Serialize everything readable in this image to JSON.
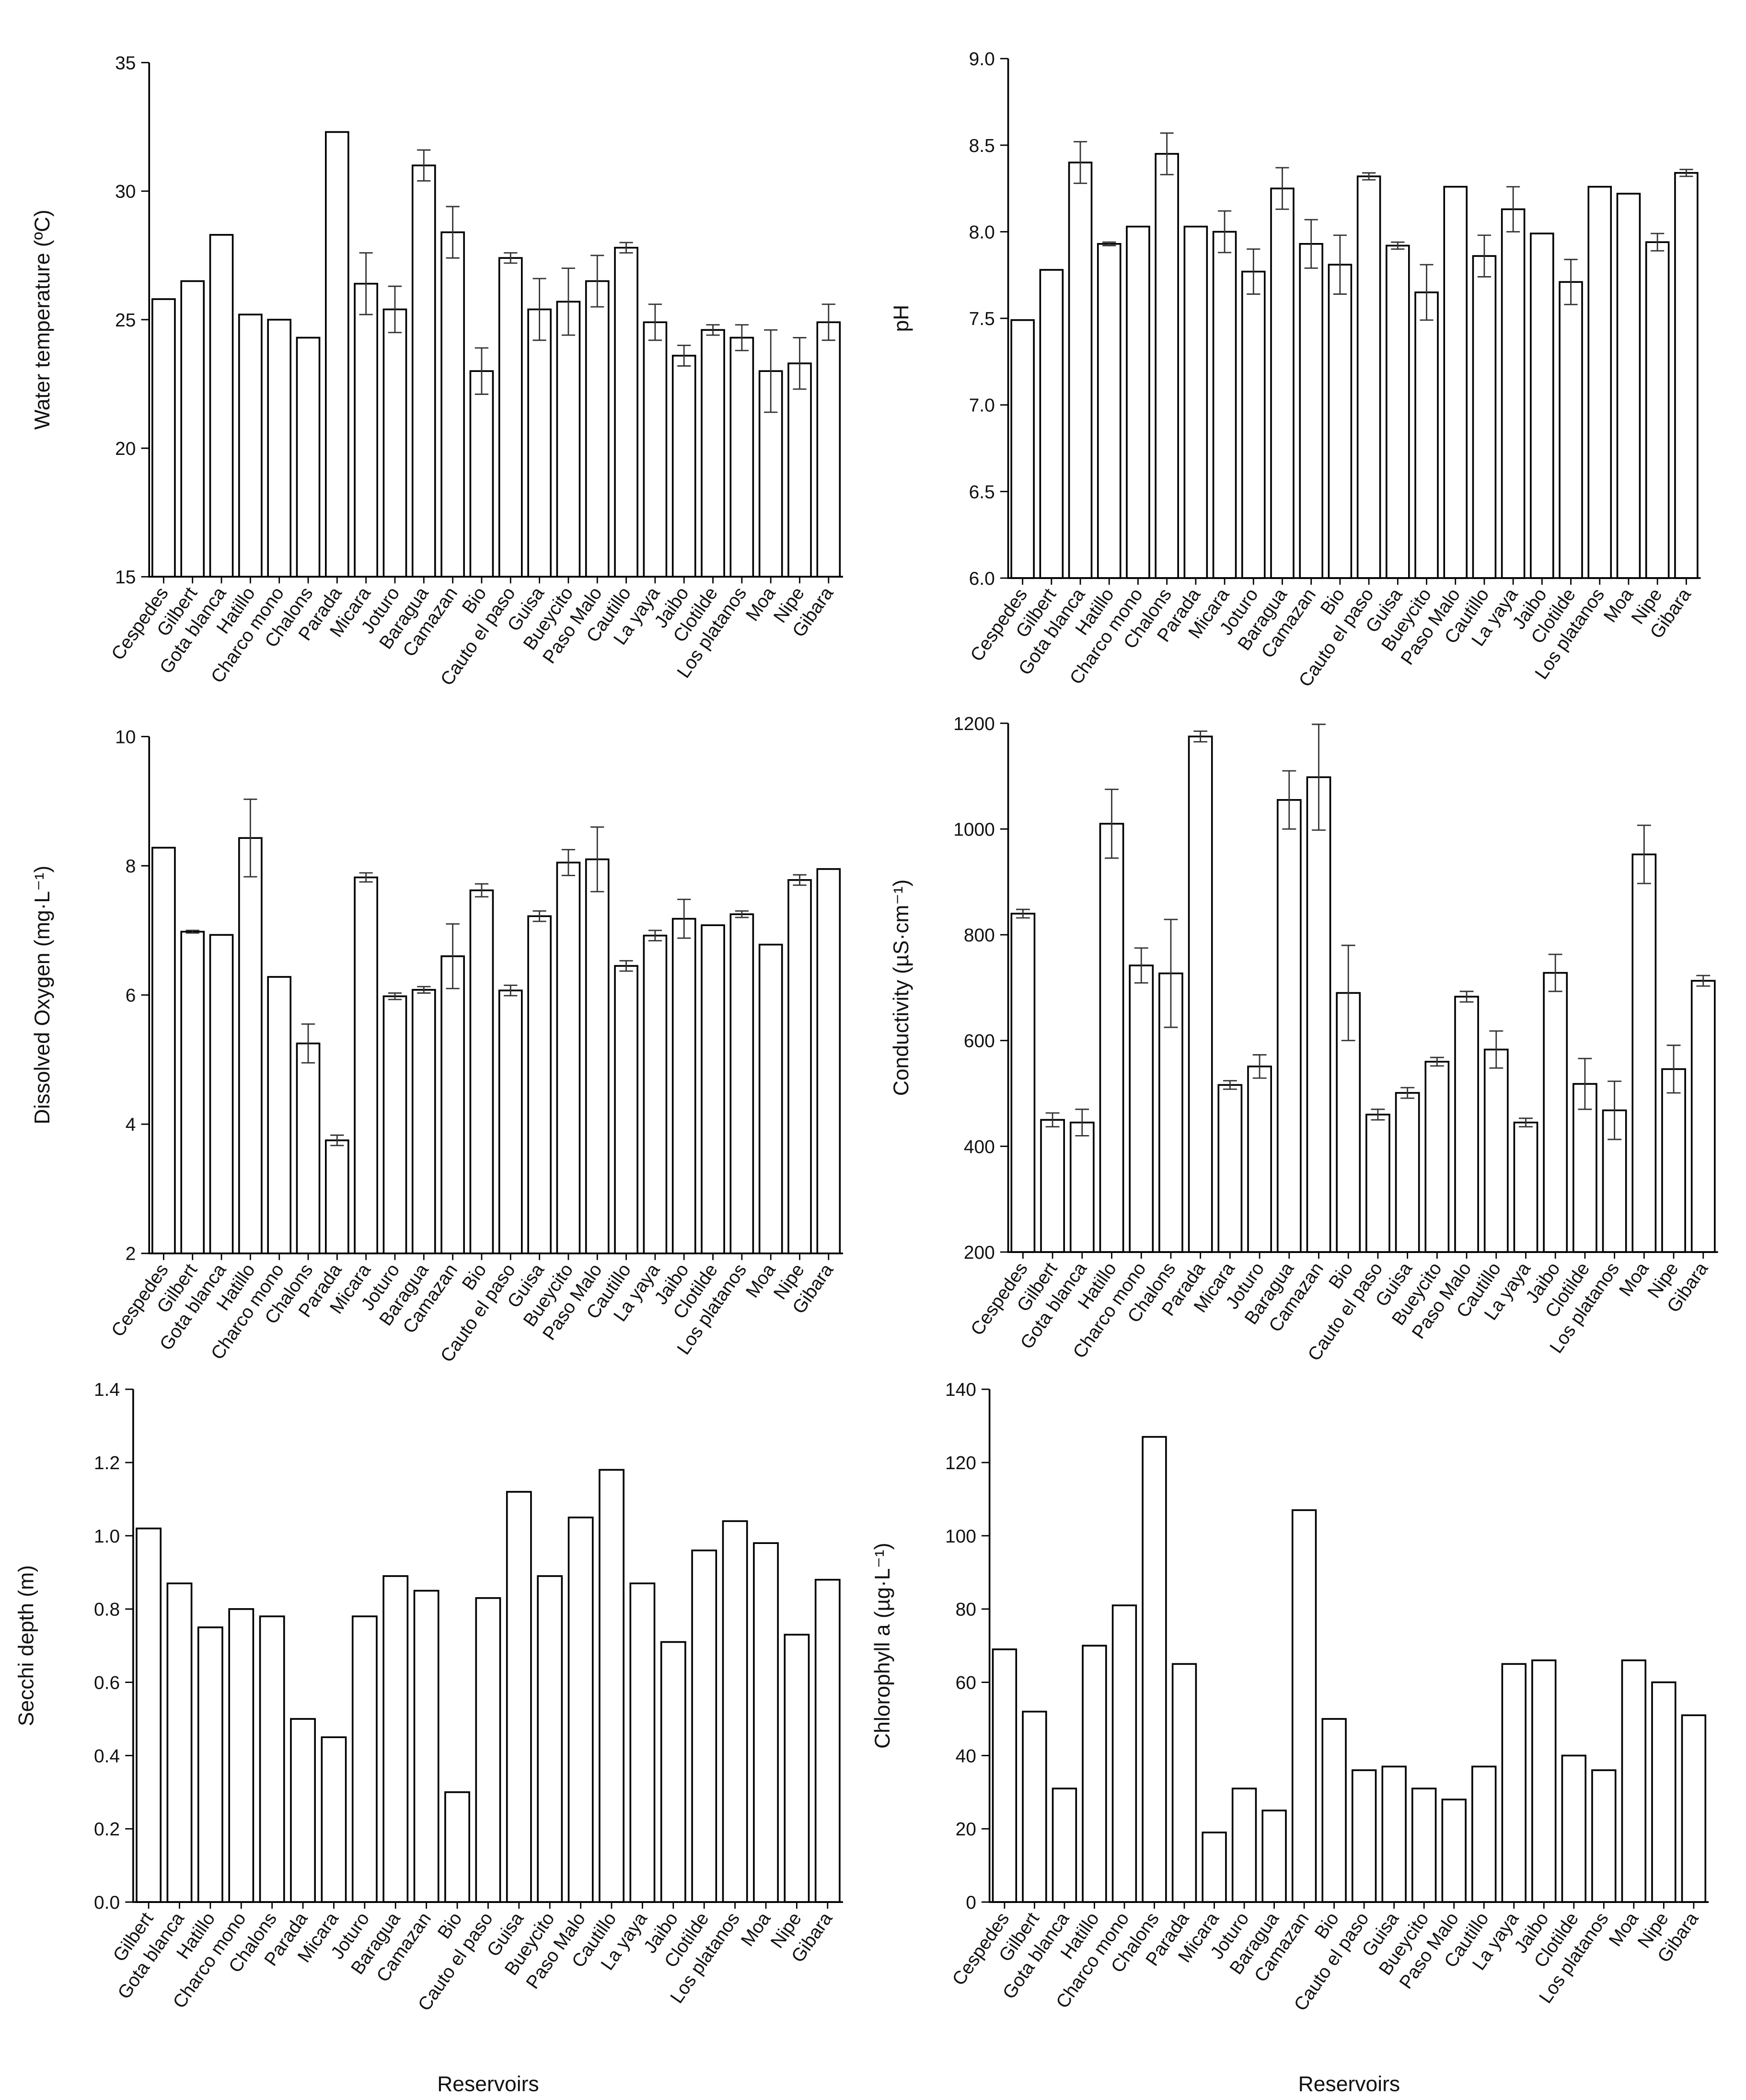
{
  "chart_data": [
    {
      "type": "bar",
      "y_label": "Water temperature (ºC)",
      "categories": [
        "Cespedes",
        "Gilbert",
        "Gota blanca",
        "Hatillo",
        "Charco mono",
        "Chalons",
        "Parada",
        "Micara",
        "Joturo",
        "Baragua",
        "Camazan",
        "Bio",
        "Cauto el paso",
        "Guisa",
        "Bueycito",
        "Paso Malo",
        "Cautillo",
        "La yaya",
        "Jaibo",
        "Clotilde",
        "Los platanos",
        "Moa",
        "Nipe",
        "Gibara"
      ],
      "values": [
        25.8,
        26.5,
        28.3,
        25.2,
        25.0,
        24.3,
        32.3,
        26.4,
        25.4,
        31.0,
        28.4,
        23.0,
        27.4,
        25.4,
        25.7,
        26.5,
        27.8,
        24.9,
        23.6,
        24.6,
        24.3,
        23.0,
        23.3,
        24.9
      ],
      "errors": [
        null,
        null,
        null,
        null,
        null,
        null,
        null,
        1.2,
        0.9,
        0.6,
        1.0,
        0.9,
        0.2,
        1.2,
        1.3,
        1.0,
        0.2,
        0.7,
        0.4,
        0.2,
        0.5,
        1.6,
        1.0,
        0.7
      ],
      "color": "#ffffff",
      "ylim": [
        15,
        35
      ],
      "yticks": [
        15,
        20,
        25,
        30,
        35
      ]
    },
    {
      "type": "bar",
      "y_label": "pH",
      "categories": [
        "Cespedes",
        "Gilbert",
        "Gota blanca",
        "Hatillo",
        "Charco mono",
        "Chalons",
        "Parada",
        "Micara",
        "Joturo",
        "Baragua",
        "Camazan",
        "Bio",
        "Cauto el paso",
        "Guisa",
        "Bueycito",
        "Paso Malo",
        "Cautillo",
        "La yaya",
        "Jaibo",
        "Clotilde",
        "Los platanos",
        "Moa",
        "Nipe",
        "Gibara"
      ],
      "values": [
        7.49,
        7.78,
        8.4,
        7.93,
        8.03,
        8.45,
        8.03,
        8.0,
        7.77,
        8.25,
        7.93,
        7.81,
        8.32,
        7.92,
        7.65,
        8.26,
        7.86,
        8.13,
        7.99,
        7.71,
        8.26,
        8.22,
        7.94,
        8.34
      ],
      "errors": [
        null,
        null,
        0.12,
        0.01,
        null,
        0.12,
        null,
        0.12,
        0.13,
        0.12,
        0.14,
        0.17,
        0.02,
        0.02,
        0.16,
        null,
        0.12,
        0.13,
        null,
        0.13,
        null,
        null,
        0.05,
        0.02
      ],
      "color": "#ffffff",
      "ylim": [
        6,
        9
      ],
      "yticks": [
        {
          "value": 6,
          "label": "6.0"
        },
        6.5,
        {
          "value": 7,
          "label": "7.0"
        },
        7.5,
        {
          "value": 8,
          "label": "8.0"
        },
        8.5,
        {
          "value": 9,
          "label": "9.0"
        }
      ]
    },
    {
      "type": "bar",
      "y_label": "Dissolved Oxygen (mg·L⁻¹)",
      "categories": [
        "Cespedes",
        "Gilbert",
        "Gota blanca",
        "Hatillo",
        "Charco mono",
        "Chalons",
        "Parada",
        "Micara",
        "Joturo",
        "Baragua",
        "Camazan",
        "Bio",
        "Cauto el paso",
        "Guisa",
        "Bueycito",
        "Paso Malo",
        "Cautillo",
        "La yaya",
        "Jaibo",
        "Clotilde",
        "Los platanos",
        "Moa",
        "Nipe",
        "Gibara"
      ],
      "values": [
        8.28,
        6.98,
        6.93,
        8.43,
        6.28,
        5.25,
        3.75,
        7.82,
        5.98,
        6.08,
        6.6,
        7.62,
        6.07,
        7.22,
        8.05,
        8.1,
        6.45,
        6.92,
        7.18,
        7.08,
        7.25,
        6.78,
        7.78,
        7.95
      ],
      "errors": [
        null,
        0.02,
        null,
        0.6,
        null,
        0.3,
        0.08,
        0.07,
        0.05,
        0.05,
        0.5,
        0.1,
        0.08,
        0.08,
        0.2,
        0.5,
        0.08,
        0.08,
        0.3,
        null,
        0.05,
        null,
        0.08,
        null
      ],
      "color": "#ffffff",
      "ylim": [
        2,
        10
      ],
      "yticks": [
        2,
        4,
        6,
        8,
        10
      ]
    },
    {
      "type": "bar",
      "y_label": "Conductivity (µS·cm⁻¹)",
      "categories": [
        "Cespedes",
        "Gilbert",
        "Gota blanca",
        "Hatillo",
        "Charco mono",
        "Chalons",
        "Parada",
        "Micara",
        "Joturo",
        "Baragua",
        "Camazan",
        "Bio",
        "Cauto el paso",
        "Guisa",
        "Bueycito",
        "Paso Malo",
        "Cautillo",
        "La yaya",
        "Jaibo",
        "Clotilde",
        "Los platanos",
        "Moa",
        "Nipe",
        "Gibara"
      ],
      "values": [
        840,
        450,
        445,
        1010,
        742,
        727,
        1175,
        516,
        551,
        1055,
        1098,
        690,
        460,
        501,
        560,
        683,
        583,
        445,
        728,
        518,
        468,
        952,
        546,
        713
      ],
      "errors": [
        8,
        13,
        25,
        65,
        33,
        102,
        10,
        8,
        22,
        55,
        100,
        90,
        10,
        10,
        8,
        10,
        35,
        8,
        35,
        48,
        55,
        55,
        45,
        10
      ],
      "color": "#ffffff",
      "ylim": [
        200,
        1200
      ],
      "yticks": [
        200,
        400,
        600,
        800,
        1000,
        1200
      ]
    },
    {
      "type": "bar",
      "y_label": "Secchi depth (m)",
      "x_label": "Reservoirs",
      "categories": [
        "Gilbert",
        "Gota blanca",
        "Hatillo",
        "Charco mono",
        "Chalons",
        "Parada",
        "Micara",
        "Joturo",
        "Baragua",
        "Camazan",
        "Bio",
        "Cauto el paso",
        "Guisa",
        "Bueycito",
        "Paso Malo",
        "Cautillo",
        "La yaya",
        "Jaibo",
        "Clotilde",
        "Los platanos",
        "Moa",
        "Nipe",
        "Gibara"
      ],
      "values": [
        1.02,
        0.87,
        0.75,
        0.8,
        0.78,
        0.5,
        0.45,
        0.78,
        0.89,
        0.85,
        0.3,
        0.83,
        1.12,
        0.89,
        1.05,
        1.18,
        0.87,
        0.71,
        0.96,
        1.04,
        0.98,
        0.73,
        0.88
      ],
      "color": "#ffffff",
      "ylim": [
        0,
        1.4
      ],
      "yticks": [
        {
          "value": 0,
          "label": "0.0"
        },
        0.2,
        0.4,
        0.6,
        0.8,
        {
          "value": 1,
          "label": "1.0"
        },
        1.2,
        1.4
      ]
    },
    {
      "type": "bar",
      "y_label": "Chlorophyll a (µg·L⁻¹)",
      "x_label": "Reservoirs",
      "categories": [
        "Cespedes",
        "Gilbert",
        "Gota blanca",
        "Hatillo",
        "Charco mono",
        "Chalons",
        "Parada",
        "Micara",
        "Joturo",
        "Baragua",
        "Camazan",
        "Bio",
        "Cauto el paso",
        "Guisa",
        "Bueycito",
        "Paso Malo",
        "Cautillo",
        "La yaya",
        "Jaibo",
        "Clotilde",
        "Los platanos",
        "Moa",
        "Nipe",
        "Gibara"
      ],
      "values": [
        69,
        52,
        31,
        70,
        81,
        127,
        65,
        19,
        31,
        25,
        107,
        50,
        36,
        37,
        31,
        28,
        37,
        65,
        66,
        40,
        36,
        66,
        60,
        51
      ],
      "color": "#ffffff",
      "ylim": [
        0,
        140
      ],
      "yticks": [
        0,
        20,
        40,
        60,
        80,
        100,
        120,
        140
      ]
    }
  ]
}
